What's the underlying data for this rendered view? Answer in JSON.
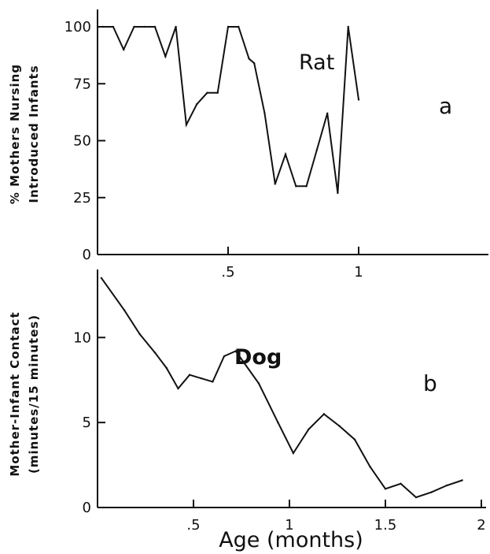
{
  "chart_data": [
    {
      "type": "line",
      "panel_letter": "a",
      "annotation": "Rat",
      "ylabel_lines": [
        "% Mothers Nursing",
        "Introduced Infants"
      ],
      "xlim": [
        0,
        1.3
      ],
      "ylim": [
        0,
        100
      ],
      "yticks": [
        0,
        25,
        50,
        75,
        100
      ],
      "xticks": [
        0.5,
        1
      ],
      "xtick_labels": [
        ".5",
        "1"
      ],
      "series": [
        {
          "x": [
            0.02,
            0.06,
            0.1,
            0.14,
            0.18,
            0.22,
            0.26,
            0.3,
            0.34,
            0.38,
            0.42,
            0.46,
            0.5,
            0.54,
            0.58,
            0.6,
            0.64,
            0.68,
            0.72,
            0.76,
            0.8,
            0.84,
            0.88,
            0.92,
            0.96,
            1.0
          ],
          "y": [
            100,
            100,
            90,
            100,
            100,
            100,
            87,
            100,
            57,
            66,
            71,
            71,
            100,
            100,
            86,
            84,
            62,
            31,
            44,
            30,
            30,
            46,
            62,
            27,
            100,
            68
          ]
        }
      ]
    },
    {
      "type": "line",
      "panel_letter": "b",
      "annotation": "Dog",
      "ylabel_lines": [
        "Mother-Infant Contact",
        "(minutes/15 minutes)"
      ],
      "xlabel": "Age (months)",
      "xlim": [
        0,
        2
      ],
      "ylim": [
        0,
        14
      ],
      "yticks": [
        0,
        5,
        10
      ],
      "xticks": [
        0.5,
        1,
        1.5,
        2
      ],
      "xtick_labels": [
        ".5",
        "1",
        "1.5",
        "2"
      ],
      "series": [
        {
          "x": [
            0.02,
            0.14,
            0.22,
            0.3,
            0.36,
            0.42,
            0.48,
            0.54,
            0.6,
            0.66,
            0.72,
            0.84,
            0.94,
            1.02,
            1.1,
            1.18,
            1.26,
            1.34,
            1.42,
            1.5,
            1.58,
            1.66,
            1.74,
            1.82,
            1.9
          ],
          "y": [
            13.5,
            11.6,
            10.2,
            9.1,
            8.2,
            7.0,
            7.8,
            7.6,
            7.4,
            8.9,
            9.2,
            7.3,
            5.0,
            3.2,
            4.6,
            5.5,
            4.8,
            4.0,
            2.4,
            1.1,
            1.4,
            0.6,
            0.9,
            1.3,
            1.6
          ]
        }
      ]
    }
  ]
}
